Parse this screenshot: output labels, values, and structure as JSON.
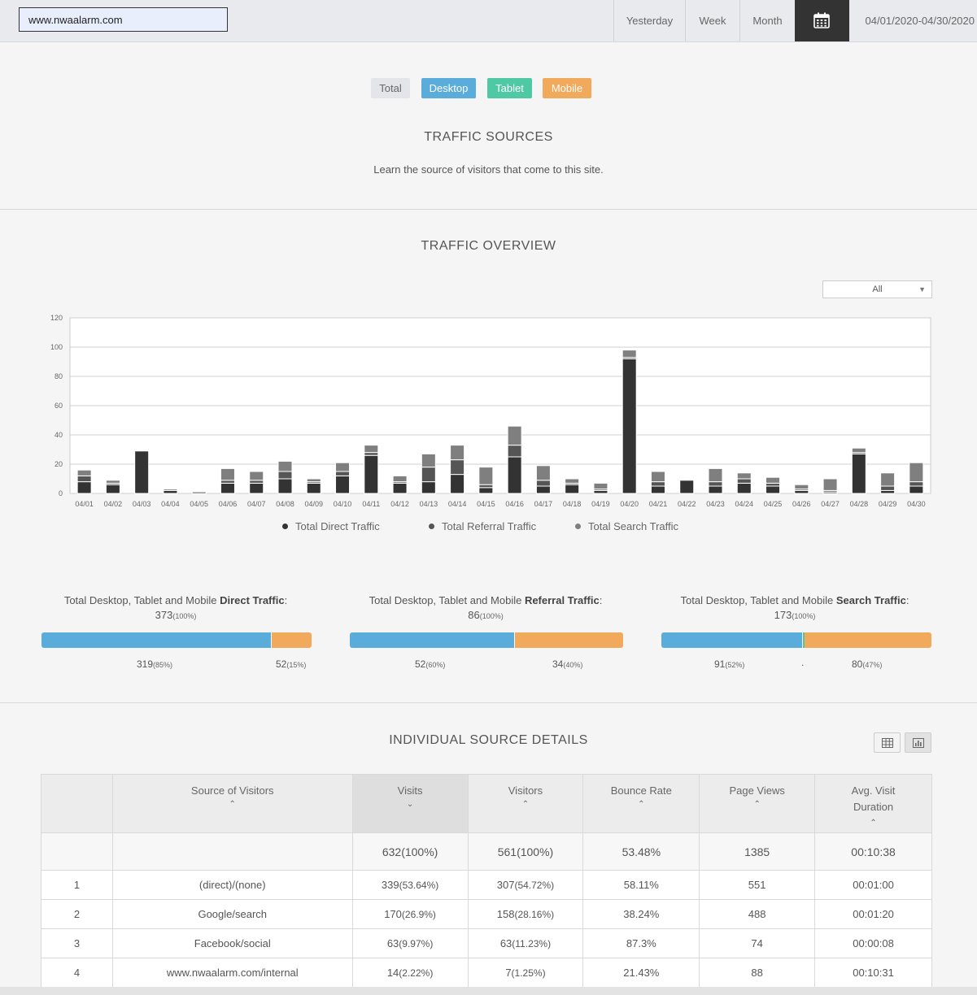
{
  "topbar": {
    "url_value": "www.nwaalarm.com",
    "range_options": [
      "Yesterday",
      "Week",
      "Month"
    ],
    "calendar_icon": "calendar-icon",
    "date_range": "04/01/2020-04/30/2020"
  },
  "device_filter": {
    "total": "Total",
    "desktop": "Desktop",
    "tablet": "Tablet",
    "mobile": "Mobile",
    "colors": {
      "total": "#e4e5e9",
      "desktop": "#5aaddb",
      "tablet": "#4fc9a4",
      "mobile": "#f1a95c"
    }
  },
  "traffic_sources": {
    "title": "TRAFFIC  SOURCES",
    "subtitle": "Learn the source of visitors that come to this site."
  },
  "overview": {
    "title": "TRAFFIC  OVERVIEW",
    "filter_value": "All",
    "filter_icon": "chevron-down-icon"
  },
  "chart_data": {
    "type": "bar",
    "stacked": true,
    "categories": [
      "04/01",
      "04/02",
      "04/03",
      "04/04",
      "04/05",
      "04/06",
      "04/07",
      "04/08",
      "04/09",
      "04/10",
      "04/11",
      "04/12",
      "04/13",
      "04/14",
      "04/15",
      "04/16",
      "04/17",
      "04/18",
      "04/19",
      "04/20",
      "04/21",
      "04/22",
      "04/23",
      "04/24",
      "04/25",
      "04/26",
      "04/27",
      "04/28",
      "04/29",
      "04/30"
    ],
    "series": [
      {
        "name": "Total Direct Traffic",
        "color": "#333333",
        "values": [
          8,
          6,
          29,
          2,
          1,
          7,
          7,
          10,
          7,
          12,
          26,
          7,
          8,
          13,
          4,
          25,
          5,
          6,
          2,
          92,
          5,
          9,
          5,
          7,
          5,
          2,
          1,
          27,
          2,
          5
        ]
      },
      {
        "name": "Total Referral Traffic",
        "color": "#555555",
        "values": [
          4,
          1,
          0,
          0,
          0,
          2,
          2,
          5,
          1,
          3,
          2,
          1,
          10,
          10,
          2,
          8,
          4,
          1,
          1,
          1,
          3,
          0,
          3,
          3,
          2,
          1,
          1,
          1,
          3,
          3
        ]
      },
      {
        "name": "Total Search Traffic",
        "color": "#7f7f7f",
        "values": [
          4,
          2,
          0,
          1,
          0,
          8,
          6,
          7,
          2,
          6,
          5,
          4,
          9,
          10,
          12,
          13,
          10,
          3,
          4,
          5,
          7,
          0,
          9,
          4,
          4,
          3,
          8,
          3,
          9,
          13
        ]
      }
    ],
    "ylim": [
      0,
      120
    ],
    "yticks": [
      0,
      20,
      40,
      60,
      80,
      100,
      120
    ],
    "grid": true,
    "legend_position": "bottom"
  },
  "summary": [
    {
      "prefix": "Total Desktop, Tablet and Mobile ",
      "kind": "Direct Traffic",
      "suffix": ":",
      "total": "373",
      "total_pct": "(100%)",
      "desktop": "319",
      "desktop_pct": "(85%)",
      "mobile": "52",
      "mobile_pct": "(15%)",
      "desktop_share": 0.85,
      "mobile_share": 0.15
    },
    {
      "prefix": "Total Desktop, Tablet and Mobile ",
      "kind": "Referral Traffic",
      "suffix": ":",
      "total": "86",
      "total_pct": "(100%)",
      "desktop": "52",
      "desktop_pct": "(60%)",
      "mobile": "34",
      "mobile_pct": "(40%)",
      "desktop_share": 0.6,
      "mobile_share": 0.4
    },
    {
      "prefix": "Total Desktop, Tablet and Mobile ",
      "kind": "Search Traffic",
      "suffix": ":",
      "total": "173",
      "total_pct": "(100%)",
      "desktop": "91",
      "desktop_pct": "(52%)",
      "tablet_dot": ".",
      "mobile": "80",
      "mobile_pct": "(47%)",
      "desktop_share": 0.52,
      "mobile_share": 0.47
    }
  ],
  "details": {
    "title": "INDIVIDUAL  SOURCE  DETAILS",
    "table_view_icon": "table-icon",
    "chart_view_icon": "bar-chart-icon",
    "columns": [
      "",
      "Source of Visitors",
      "Visits",
      "Visitors",
      "Bounce Rate",
      "Page Views",
      "Avg. Visit Duration"
    ],
    "sort_up": "⌃",
    "sort_down": "⌄",
    "totals": {
      "visits": "632",
      "visits_pct": "(100%)",
      "visitors": "561",
      "visitors_pct": "(100%)",
      "bounce": "53.48%",
      "views": "1385",
      "duration": "00:10:38"
    },
    "rows": [
      {
        "n": "1",
        "source": "(direct)/(none)",
        "visits": "339",
        "visits_pct": "(53.64%)",
        "visitors": "307",
        "visitors_pct": "(54.72%)",
        "bounce": "58.11%",
        "views": "551",
        "duration": "00:01:00"
      },
      {
        "n": "2",
        "source": "Google/search",
        "visits": "170",
        "visits_pct": "(26.9%)",
        "visitors": "158",
        "visitors_pct": "(28.16%)",
        "bounce": "38.24%",
        "views": "488",
        "duration": "00:01:20"
      },
      {
        "n": "3",
        "source": "Facebook/social",
        "visits": "63",
        "visits_pct": "(9.97%)",
        "visitors": "63",
        "visitors_pct": "(11.23%)",
        "bounce": "87.3%",
        "views": "74",
        "duration": "00:00:08"
      },
      {
        "n": "4",
        "source": "www.nwaalarm.com/internal",
        "visits": "14",
        "visits_pct": "(2.22%)",
        "visitors": "7",
        "visitors_pct": "(1.25%)",
        "bounce": "21.43%",
        "views": "88",
        "duration": "00:10:31"
      }
    ]
  }
}
